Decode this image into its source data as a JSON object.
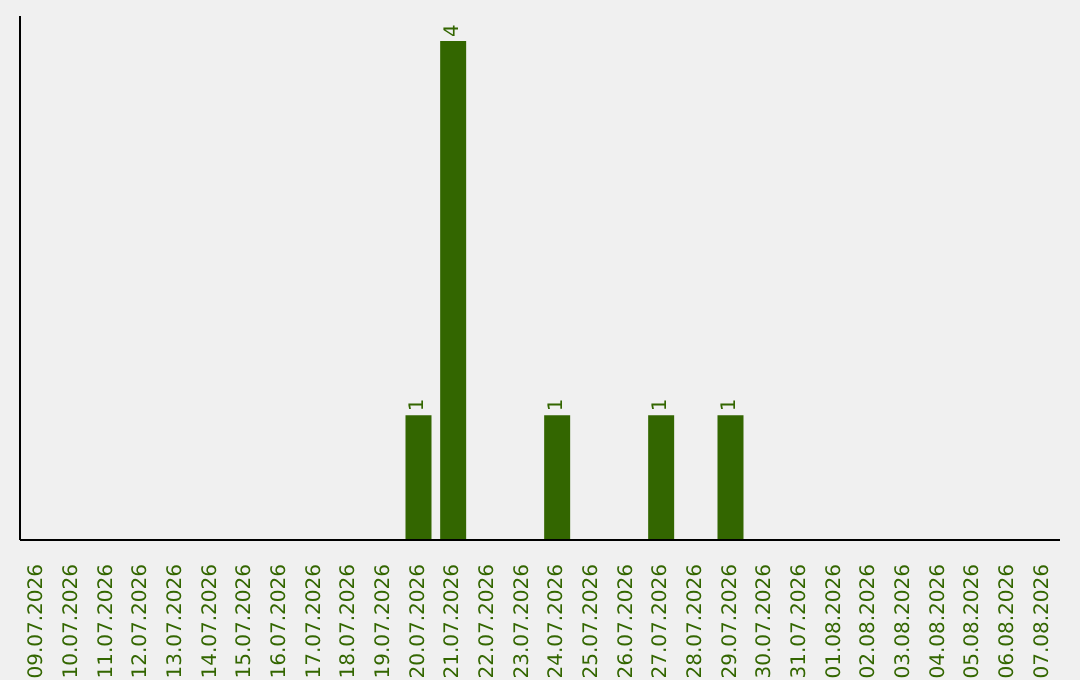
{
  "chart_data": {
    "type": "bar",
    "categories": [
      "09.07.2026",
      "10.07.2026",
      "11.07.2026",
      "12.07.2026",
      "13.07.2026",
      "14.07.2026",
      "15.07.2026",
      "16.07.2026",
      "17.07.2026",
      "18.07.2026",
      "19.07.2026",
      "20.07.2026",
      "21.07.2026",
      "22.07.2026",
      "23.07.2026",
      "24.07.2026",
      "25.07.2026",
      "26.07.2026",
      "27.07.2026",
      "28.07.2026",
      "29.07.2026",
      "30.07.2026",
      "31.07.2026",
      "01.08.2026",
      "02.08.2026",
      "03.08.2026",
      "04.08.2026",
      "05.08.2026",
      "06.08.2026",
      "07.08.2026"
    ],
    "values": [
      0,
      0,
      0,
      0,
      0,
      0,
      0,
      0,
      0,
      0,
      0,
      1,
      4,
      0,
      0,
      1,
      0,
      0,
      1,
      0,
      1,
      0,
      0,
      0,
      0,
      0,
      0,
      0,
      0,
      0
    ],
    "value_labels": [
      null,
      null,
      null,
      null,
      null,
      null,
      null,
      null,
      null,
      null,
      null,
      "1",
      "4",
      null,
      null,
      "1",
      null,
      null,
      "1",
      null,
      "1",
      null,
      null,
      null,
      null,
      null,
      null,
      null,
      null,
      null
    ],
    "color": "#336600",
    "grid": false,
    "legend": false
  }
}
